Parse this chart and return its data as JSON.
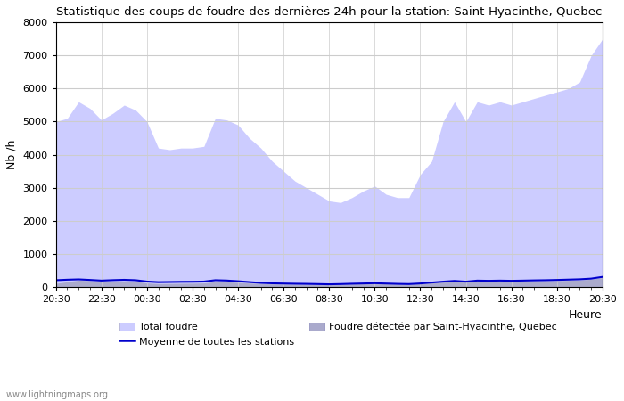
{
  "title": "Statistique des coups de foudre des dernières 24h pour la station: Saint-Hyacinthe, Quebec",
  "xlabel": "Heure",
  "ylabel": "Nb /h",
  "ylim": [
    0,
    8000
  ],
  "yticks": [
    0,
    1000,
    2000,
    3000,
    4000,
    5000,
    6000,
    7000,
    8000
  ],
  "xtick_labels": [
    "20:30",
    "22:30",
    "00:30",
    "02:30",
    "04:30",
    "06:30",
    "08:30",
    "10:30",
    "12:30",
    "14:30",
    "16:30",
    "18:30",
    "20:30"
  ],
  "watermark": "www.lightningmaps.org",
  "legend": {
    "total_foudre_label": "Total foudre",
    "moyenne_label": "Moyenne de toutes les stations",
    "station_label": "Foudre détectée par Saint-Hyacinthe, Quebec"
  },
  "total_foudre_color": "#ccccff",
  "station_color": "#aaaacc",
  "moyenne_color": "#0000cc",
  "background_color": "#ffffff",
  "grid_color": "#cccccc",
  "total_x": [
    0,
    0.5,
    1.0,
    1.5,
    2.0,
    2.5,
    3.0,
    3.5,
    4.0,
    4.5,
    5.0,
    5.5,
    6.0,
    6.5,
    7.0,
    7.5,
    8.0,
    8.5,
    9.0,
    9.5,
    10.0,
    10.5,
    11.0,
    11.5,
    12.0,
    12.5,
    13.0,
    13.5,
    14.0,
    14.5,
    15.0,
    15.5,
    16.0,
    16.5,
    17.0,
    17.5,
    18.0,
    18.5,
    19.0,
    19.5,
    20.0,
    20.5,
    21.0,
    21.5,
    22.0,
    22.5,
    23.0,
    23.5,
    24.0
  ],
  "total_y": [
    5000,
    5100,
    5600,
    5400,
    5050,
    5250,
    5500,
    5350,
    5000,
    4200,
    4150,
    4200,
    4200,
    4250,
    5100,
    5050,
    4900,
    4500,
    4200,
    3800,
    3500,
    3200,
    3000,
    2800,
    2600,
    2550,
    2700,
    2900,
    3050,
    2800,
    2700,
    2700,
    3400,
    3800,
    5000,
    5600,
    5000,
    5600,
    5500,
    5600,
    5500,
    5600,
    5700,
    5800,
    5900,
    6000,
    6200,
    7000,
    7500
  ],
  "station_y": [
    100,
    150,
    200,
    185,
    160,
    170,
    175,
    165,
    115,
    95,
    100,
    105,
    108,
    115,
    155,
    148,
    132,
    112,
    98,
    88,
    82,
    78,
    75,
    72,
    68,
    75,
    85,
    92,
    98,
    88,
    80,
    78,
    90,
    115,
    140,
    160,
    140,
    170,
    165,
    170,
    165,
    170,
    175,
    180,
    185,
    195,
    205,
    230,
    280
  ],
  "moyenne_y": [
    200,
    215,
    225,
    208,
    188,
    202,
    212,
    200,
    158,
    140,
    145,
    150,
    152,
    158,
    200,
    190,
    168,
    142,
    118,
    105,
    98,
    92,
    88,
    82,
    75,
    82,
    92,
    100,
    108,
    98,
    88,
    82,
    100,
    128,
    155,
    178,
    155,
    188,
    182,
    188,
    182,
    188,
    195,
    200,
    208,
    218,
    228,
    248,
    300
  ]
}
